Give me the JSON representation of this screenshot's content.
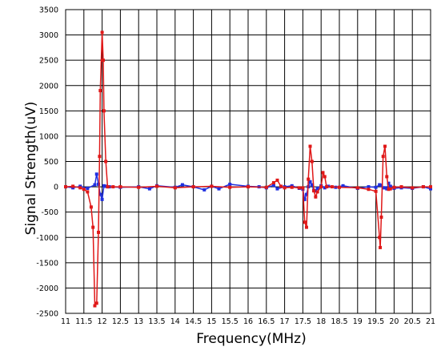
{
  "chart_data": {
    "type": "line",
    "title": "",
    "xlabel": "Frequency(MHz)",
    "ylabel": "Signal Strength(uV)",
    "xlim": [
      11,
      21
    ],
    "ylim": [
      -2500,
      3500
    ],
    "grid": true,
    "xticks": [
      "11",
      "11.5",
      "12",
      "12.5",
      "13",
      "13.5",
      "14",
      "14.5",
      "15",
      "15.5",
      "16",
      "16.5",
      "17",
      "17.5",
      "18",
      "18.5",
      "19",
      "19.5",
      "20",
      "20.5",
      "21"
    ],
    "yticks": [
      "3500",
      "3000",
      "2500",
      "2000",
      "1500",
      "1000",
      "500",
      "0",
      "-500",
      "-1000",
      "-1500",
      "-2000",
      "-2500"
    ],
    "series": [
      {
        "color": "#1f2fe0",
        "x": [
          11.0,
          11.2,
          11.4,
          11.6,
          11.8,
          11.85,
          11.9,
          11.95,
          12.0,
          12.05,
          12.1,
          12.15,
          12.2,
          12.5,
          13.0,
          13.3,
          13.5,
          14.0,
          14.2,
          14.5,
          14.8,
          15.0,
          15.2,
          15.5,
          16.0,
          16.3,
          16.5,
          16.7,
          16.8,
          17.0,
          17.2,
          17.4,
          17.5,
          17.55,
          17.6,
          17.65,
          17.7,
          17.75,
          17.8,
          17.85,
          17.9,
          18.0,
          18.1,
          18.2,
          18.4,
          18.6,
          19.0,
          19.3,
          19.5,
          19.6,
          19.65,
          19.7,
          19.75,
          19.8,
          19.85,
          19.9,
          20.0,
          20.2,
          20.5,
          20.8,
          21.0
        ],
        "y": [
          0,
          -20,
          10,
          -30,
          40,
          250,
          50,
          -150,
          -250,
          20,
          10,
          0,
          0,
          -10,
          0,
          -40,
          20,
          -10,
          40,
          0,
          -60,
          10,
          -40,
          50,
          10,
          0,
          -20,
          30,
          -40,
          0,
          20,
          -30,
          -50,
          -250,
          -150,
          0,
          100,
          40,
          -70,
          -80,
          -30,
          20,
          -20,
          10,
          -10,
          20,
          -30,
          0,
          -10,
          40,
          30,
          -20,
          -20,
          -40,
          70,
          10,
          -30,
          -20,
          -30,
          0,
          -40
        ]
      },
      {
        "color": "#e01818",
        "x": [
          11.0,
          11.2,
          11.4,
          11.5,
          11.6,
          11.7,
          11.75,
          11.8,
          11.85,
          11.9,
          11.93,
          11.95,
          12.0,
          12.03,
          12.05,
          12.1,
          12.15,
          12.3,
          12.5,
          13.0,
          13.5,
          14.0,
          14.5,
          15.0,
          15.5,
          16.0,
          16.5,
          16.7,
          16.8,
          16.9,
          17.0,
          17.2,
          17.4,
          17.5,
          17.55,
          17.6,
          17.65,
          17.7,
          17.75,
          17.8,
          17.85,
          17.9,
          18.0,
          18.05,
          18.1,
          18.15,
          18.3,
          18.5,
          19.0,
          19.3,
          19.5,
          19.6,
          19.62,
          19.65,
          19.7,
          19.75,
          19.8,
          19.85,
          19.9,
          20.0,
          20.2,
          20.5,
          20.8,
          21.0
        ],
        "y": [
          0,
          10,
          -20,
          -50,
          -100,
          -400,
          -800,
          -2350,
          -2300,
          -900,
          600,
          1900,
          3050,
          2500,
          1500,
          500,
          0,
          0,
          0,
          -10,
          10,
          -20,
          0,
          10,
          -10,
          0,
          -10,
          80,
          130,
          10,
          -20,
          -10,
          -20,
          -20,
          -700,
          -800,
          150,
          800,
          500,
          -80,
          -200,
          -100,
          0,
          280,
          200,
          0,
          0,
          -10,
          -20,
          -50,
          -90,
          -1000,
          -1200,
          -600,
          600,
          800,
          200,
          -50,
          -40,
          -10,
          0,
          -20,
          0,
          0
        ]
      }
    ]
  }
}
